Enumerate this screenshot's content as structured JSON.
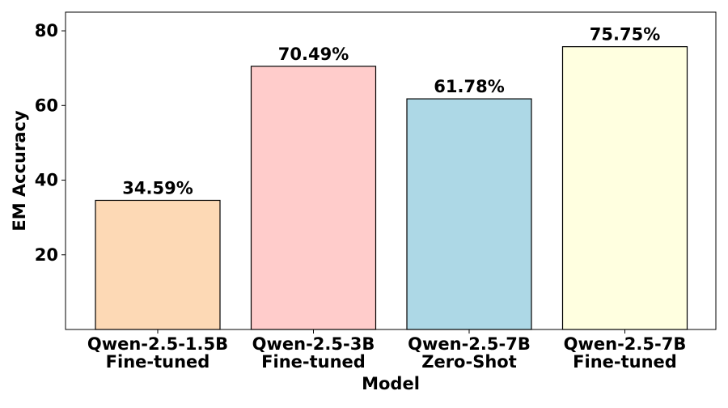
{
  "chart_data": {
    "type": "bar",
    "categories": [
      [
        "Qwen-2.5-1.5B",
        "Fine-tuned"
      ],
      [
        "Qwen-2.5-3B",
        "Fine-tuned"
      ],
      [
        "Qwen-2.5-7B",
        "Zero-Shot"
      ],
      [
        "Qwen-2.5-7B",
        "Fine-tuned"
      ]
    ],
    "values": [
      34.59,
      70.49,
      61.78,
      75.75
    ],
    "value_labels": [
      "34.59%",
      "70.49%",
      "61.78%",
      "75.75%"
    ],
    "colors": [
      "#fdd9b5",
      "#ffcccb",
      "#add8e6",
      "#ffffe0"
    ],
    "xlabel": "Model",
    "ylabel": "EM Accuracy",
    "ylim": [
      0,
      85
    ],
    "yticks": [
      20,
      40,
      60,
      80
    ],
    "grid": false,
    "edge_color": "#000000"
  }
}
